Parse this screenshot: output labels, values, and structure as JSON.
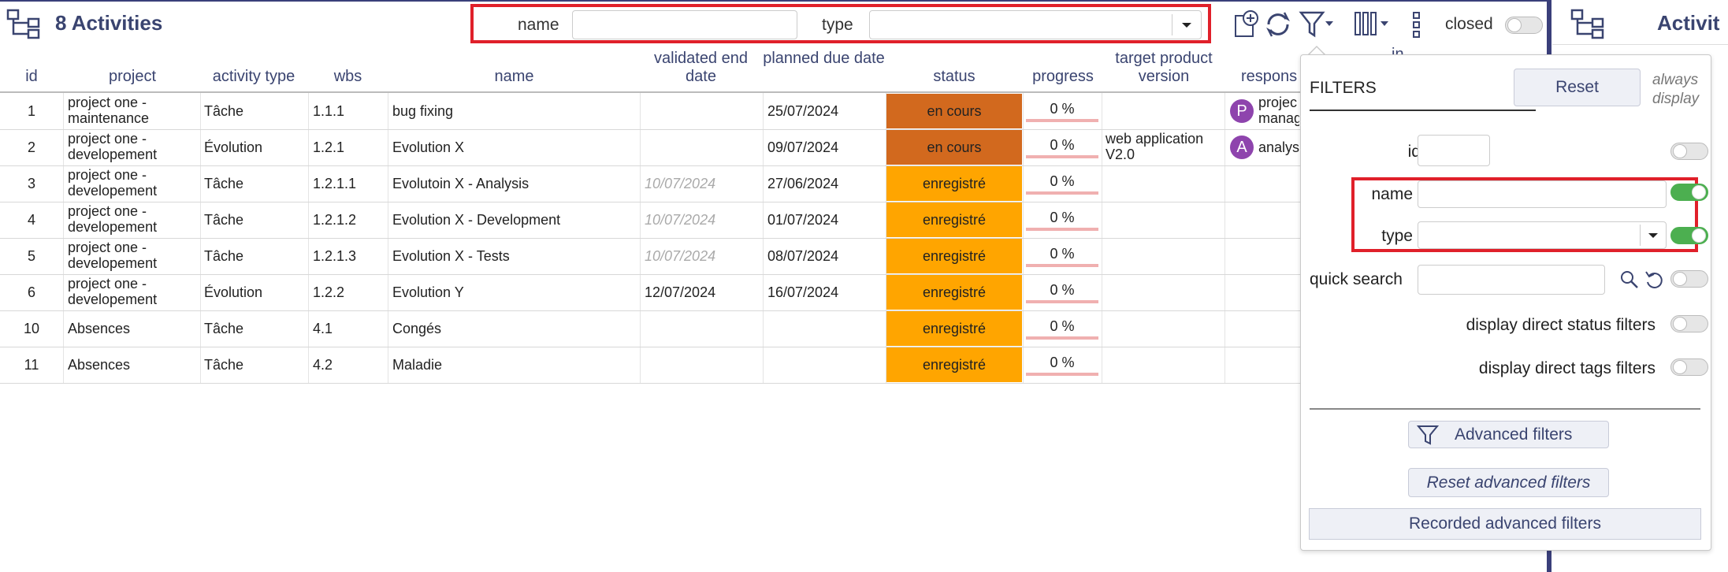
{
  "header": {
    "title": "8 Activities",
    "quick_filter": {
      "name_label": "name",
      "name_value": "",
      "type_label": "type",
      "type_value": ""
    },
    "closed_label": "closed",
    "icons": [
      "hierarchy-icon",
      "add-icon",
      "refresh-icon",
      "filter-icon",
      "columns-icon",
      "more-vert-icon"
    ]
  },
  "table": {
    "columns": [
      "id",
      "project",
      "activity type",
      "wbs",
      "name",
      "validated end date",
      "planned due date",
      "status",
      "progress",
      "target product version",
      "respons"
    ],
    "rows": [
      {
        "id": "1",
        "project": "project one - maintenance",
        "type": "Tâche",
        "wbs": "1.1.1",
        "name": "bug fixing",
        "validated_end": "",
        "planned_due": "25/07/2024",
        "status": "en cours",
        "status_color": "#d2691e",
        "progress": "0 %",
        "version": "",
        "resp_initial": "P",
        "resp_name": "projec manag"
      },
      {
        "id": "2",
        "project": "project one - developement",
        "type": "Évolution",
        "wbs": "1.2.1",
        "name": "Evolution X",
        "validated_end": "",
        "planned_due": "09/07/2024",
        "status": "en cours",
        "status_color": "#d2691e",
        "progress": "0 %",
        "version": "web application V2.0",
        "resp_initial": "A",
        "resp_name": "analys"
      },
      {
        "id": "3",
        "project": "project one - developement",
        "type": "Tâche",
        "wbs": "1.2.1.1",
        "name": "Evolutoin X - Analysis",
        "validated_end": "10/07/2024",
        "planned_due": "27/06/2024",
        "status": "enregistré",
        "status_color": "#ffa500",
        "progress": "0 %",
        "version": "",
        "resp_initial": "",
        "resp_name": ""
      },
      {
        "id": "4",
        "project": "project one - developement",
        "type": "Tâche",
        "wbs": "1.2.1.2",
        "name": "Evolution X - Development",
        "validated_end": "10/07/2024",
        "planned_due": "01/07/2024",
        "status": "enregistré",
        "status_color": "#ffa500",
        "progress": "0 %",
        "version": "",
        "resp_initial": "",
        "resp_name": ""
      },
      {
        "id": "5",
        "project": "project one - developement",
        "type": "Tâche",
        "wbs": "1.2.1.3",
        "name": "Evolution X - Tests",
        "validated_end": "10/07/2024",
        "planned_due": "08/07/2024",
        "status": "enregistré",
        "status_color": "#ffa500",
        "progress": "0 %",
        "version": "",
        "resp_initial": "",
        "resp_name": ""
      },
      {
        "id": "6",
        "project": "project one - developement",
        "type": "Évolution",
        "wbs": "1.2.2",
        "name": "Evolution Y",
        "validated_end": "12/07/2024",
        "planned_due": "16/07/2024",
        "status": "enregistré",
        "status_color": "#ffa500",
        "progress": "0 %",
        "version": "",
        "resp_initial": "",
        "resp_name": ""
      },
      {
        "id": "10",
        "project": "Absences",
        "type": "Tâche",
        "wbs": "4.1",
        "name": "Congés",
        "validated_end": "",
        "planned_due": "",
        "status": "enregistré",
        "status_color": "#ffa500",
        "progress": "0 %",
        "version": "",
        "resp_initial": "",
        "resp_name": ""
      },
      {
        "id": "11",
        "project": "Absences",
        "type": "Tâche",
        "wbs": "4.2",
        "name": "Maladie",
        "validated_end": "",
        "planned_due": "",
        "status": "enregistré",
        "status_color": "#ffa500",
        "progress": "0 %",
        "version": "",
        "resp_initial": "",
        "resp_name": ""
      }
    ]
  },
  "right_panel": {
    "title": "Activit",
    "partial_text": "in"
  },
  "filters": {
    "title": "FILTERS",
    "reset_label": "Reset",
    "always_display": "always display",
    "id_label": "id",
    "name_label": "name",
    "type_label": "type",
    "quick_search_label": "quick search",
    "direct_status_label": "display direct status filters",
    "direct_tags_label": "display direct tags filters",
    "advanced_label": "Advanced filters",
    "reset_advanced_label": "Reset advanced filters",
    "recorded_label": "Recorded advanced filters",
    "toggles": {
      "id": false,
      "name": true,
      "type": true,
      "quick_search": false,
      "direct_status": false,
      "direct_tags": false
    }
  },
  "colors": {
    "accent": "#3a4470",
    "highlight_box": "#e0202a",
    "in_progress": "#d2691e",
    "recorded": "#ffa500",
    "toggle_on": "#4caf50"
  }
}
